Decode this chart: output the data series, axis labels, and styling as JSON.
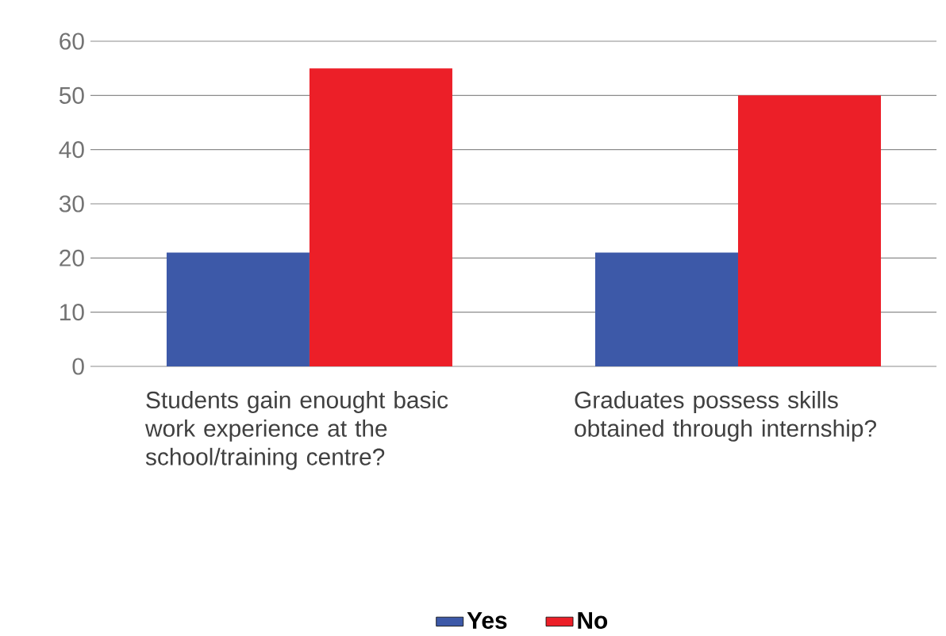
{
  "chart_data": {
    "type": "bar",
    "categories": [
      "Students gain enought basic work experience at the school/training centre?",
      "Graduates possess skills obtained through internship?"
    ],
    "series": [
      {
        "name": "Yes",
        "color": "#3d59a8",
        "values": [
          21,
          21
        ]
      },
      {
        "name": "No",
        "color": "#ec1f28",
        "values": [
          55,
          50
        ]
      }
    ],
    "ylim": [
      0,
      60
    ],
    "yticks": [
      0,
      10,
      20,
      30,
      40,
      50,
      60
    ],
    "grid": "y",
    "legend": "bottom"
  }
}
